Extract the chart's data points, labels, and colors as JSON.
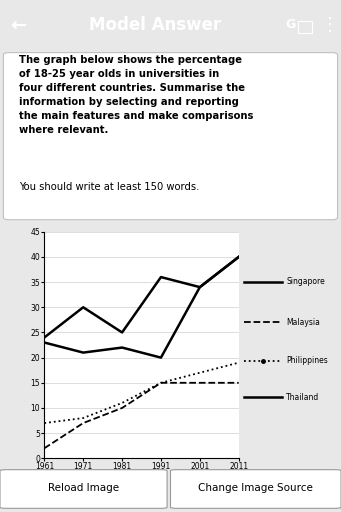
{
  "years": [
    1961,
    1971,
    1981,
    1991,
    2001,
    2011
  ],
  "singapore": [
    24,
    30,
    25,
    36,
    34,
    40
  ],
  "malaysia": [
    23,
    21,
    22,
    20,
    34,
    40
  ],
  "philippines": [
    7,
    8,
    11,
    15,
    17,
    19
  ],
  "thailand": [
    2,
    7,
    10,
    15,
    15,
    15
  ],
  "ylim": [
    0,
    45
  ],
  "yticks": [
    0,
    5,
    10,
    15,
    20,
    25,
    30,
    35,
    40,
    45
  ],
  "header_bg": "#29ABE2",
  "header_text": "Model Answer",
  "button_text_left": "Reload Image",
  "button_text_right": "Change Image Source"
}
